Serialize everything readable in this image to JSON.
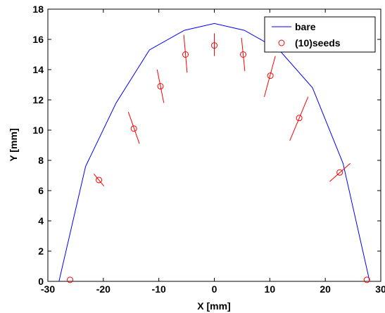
{
  "chart_data": {
    "type": "line",
    "xlabel": "X [mm]",
    "ylabel": "Y [mm]",
    "xlim": [
      -30,
      30
    ],
    "ylim": [
      0,
      18
    ],
    "xticks": [
      -30,
      -20,
      -10,
      0,
      10,
      20,
      30
    ],
    "yticks": [
      0,
      2,
      4,
      6,
      8,
      10,
      12,
      14,
      16,
      18
    ],
    "grid": false,
    "legend_position": "top-right",
    "series": [
      {
        "name": "bare",
        "style": "line",
        "color": "#0000ff",
        "x": [
          -28,
          -23.2,
          -17.7,
          -11.7,
          -5.4,
          0,
          5.4,
          11.7,
          17.7,
          23.2,
          28
        ],
        "y": [
          0,
          7.6,
          11.8,
          15.3,
          16.6,
          17.05,
          16.6,
          15.3,
          12.8,
          7.8,
          0
        ]
      },
      {
        "name": "(10)seeds",
        "style": "markers",
        "marker": "circle",
        "color": "#ff0000",
        "x": [
          -26,
          -20.8,
          -14.5,
          -9.7,
          -5.2,
          0,
          5.2,
          10.1,
          15.3,
          22.6,
          27.5
        ],
        "y": [
          0.1,
          6.7,
          10.1,
          12.9,
          15.0,
          15.6,
          15.0,
          13.6,
          10.8,
          7.2,
          0.1
        ],
        "orientation_segments": [
          [
            [
              -21.7,
              7.1
            ],
            [
              -19.9,
              6.3
            ]
          ],
          [
            [
              -15.5,
              11.2
            ],
            [
              -13.5,
              9.1
            ]
          ],
          [
            [
              -10.3,
              14.0
            ],
            [
              -9.1,
              11.8
            ]
          ],
          [
            [
              -5.5,
              16.3
            ],
            [
              -4.9,
              13.8
            ]
          ],
          [
            [
              0,
              16.4
            ],
            [
              0,
              14.9
            ]
          ],
          [
            [
              4.9,
              16.1
            ],
            [
              5.5,
              13.9
            ]
          ],
          [
            [
              9.0,
              12.2
            ],
            [
              11.0,
              14.9
            ]
          ],
          [
            [
              13.6,
              9.3
            ],
            [
              16.9,
              12.2
            ]
          ],
          [
            [
              20.8,
              6.6
            ],
            [
              24.5,
              7.8
            ]
          ]
        ]
      }
    ]
  },
  "colors": {
    "line": "#0000ff",
    "markers": "#ff0000",
    "axes": "#000000",
    "background": "#ffffff"
  }
}
